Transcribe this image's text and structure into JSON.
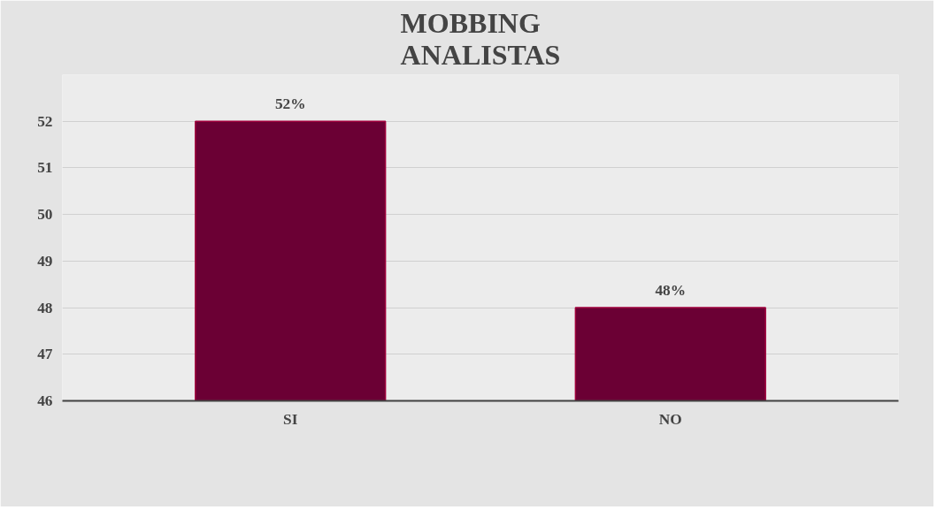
{
  "chart_data": {
    "type": "bar",
    "title": "MOBBING ANALISTAS",
    "categories": [
      "SI",
      "NO"
    ],
    "values": [
      52,
      48
    ],
    "value_labels": [
      "52%",
      "48%"
    ],
    "color": "#6b0034",
    "ylim": [
      46,
      53
    ],
    "yticks": [
      46,
      47,
      48,
      49,
      50,
      51,
      52
    ],
    "grid": "y"
  }
}
